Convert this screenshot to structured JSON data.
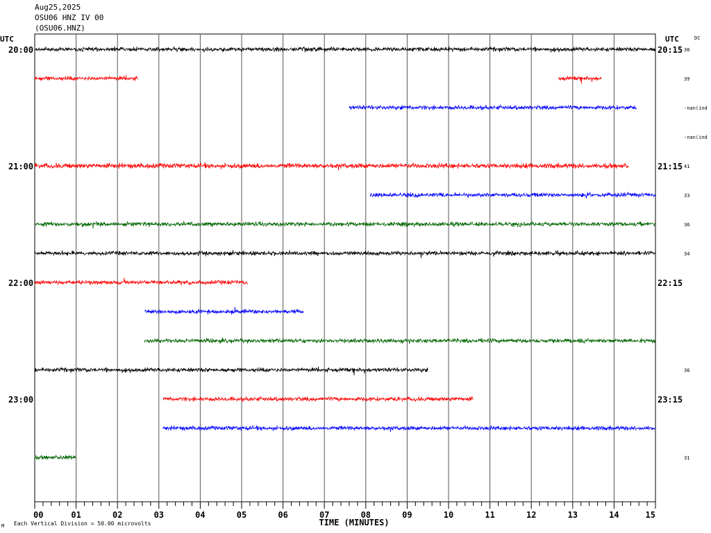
{
  "header": {
    "date": "Aug25,2025",
    "channel": "OSU06 HNZ IV 00",
    "station": "(OSU06.HNZ)"
  },
  "labels": {
    "utc_left": "UTC",
    "utc_right": "UTC",
    "dc": "DC",
    "xlabel": "TIME (MINUTES)",
    "footer_mark": "M",
    "footer": "Each Vertical Division =   50.00 microvolts"
  },
  "colors": {
    "black": "#000000",
    "red": "#ff0000",
    "blue": "#0000ff",
    "green": "#006400",
    "grid": "#000000"
  },
  "chart_data": {
    "type": "line",
    "xlim": [
      0,
      15
    ],
    "x_ticks": [
      "00",
      "01",
      "02",
      "03",
      "04",
      "05",
      "06",
      "07",
      "08",
      "09",
      "10",
      "11",
      "12",
      "13",
      "14",
      "15"
    ],
    "left_hour_labels": [
      {
        "row": 0,
        "text": "20:00"
      },
      {
        "row": 4,
        "text": "21:00"
      },
      {
        "row": 8,
        "text": "22:00"
      },
      {
        "row": 12,
        "text": "23:00"
      }
    ],
    "right_hour_labels": [
      {
        "row": 0,
        "text": "20:15"
      },
      {
        "row": 4,
        "text": "21:15"
      },
      {
        "row": 8,
        "text": "22:15"
      },
      {
        "row": 12,
        "text": "23:15"
      }
    ],
    "traces": [
      {
        "row": 0,
        "color": "black",
        "segments": [
          [
            0,
            15
          ]
        ],
        "amp": 5,
        "dc": "36"
      },
      {
        "row": 1,
        "color": "red",
        "segments": [
          [
            0,
            2.5
          ],
          [
            12.65,
            13.7
          ]
        ],
        "amp": 5,
        "dc": "39"
      },
      {
        "row": 2,
        "color": "blue",
        "segments": [
          [
            7.6,
            14.55
          ]
        ],
        "amp": 5,
        "dc": "-nan(ind"
      },
      {
        "row": 3,
        "color": "green",
        "segments": [],
        "amp": 0,
        "dc": "-nan(ind"
      },
      {
        "row": 4,
        "color": "red",
        "segments": [
          [
            0,
            14.35
          ]
        ],
        "amp": 6,
        "dc": "41"
      },
      {
        "row": 5,
        "color": "blue",
        "segments": [
          [
            8.1,
            15
          ]
        ],
        "amp": 5,
        "dc": "33"
      },
      {
        "row": 6,
        "color": "green",
        "segments": [
          [
            0,
            15
          ]
        ],
        "amp": 5,
        "dc": "36"
      },
      {
        "row": 7,
        "color": "black",
        "segments": [
          [
            0,
            15
          ]
        ],
        "amp": 5,
        "dc": "34"
      },
      {
        "row": 8,
        "color": "red",
        "segments": [
          [
            0,
            5.15
          ]
        ],
        "amp": 5,
        "dc": ""
      },
      {
        "row": 9,
        "color": "blue",
        "segments": [
          [
            2.65,
            6.5
          ]
        ],
        "amp": 5,
        "dc": ""
      },
      {
        "row": 10,
        "color": "green",
        "segments": [
          [
            2.65,
            15
          ]
        ],
        "amp": 5,
        "dc": ""
      },
      {
        "row": 11,
        "color": "black",
        "segments": [
          [
            0,
            9.5
          ]
        ],
        "amp": 5,
        "dc": "36"
      },
      {
        "row": 12,
        "color": "red",
        "segments": [
          [
            3.1,
            10.6
          ]
        ],
        "amp": 5,
        "dc": ""
      },
      {
        "row": 13,
        "color": "blue",
        "segments": [
          [
            3.1,
            15
          ]
        ],
        "amp": 5,
        "dc": ""
      },
      {
        "row": 14,
        "color": "green",
        "segments": [
          [
            0,
            1.0
          ]
        ],
        "amp": 5,
        "dc": "31"
      }
    ]
  }
}
